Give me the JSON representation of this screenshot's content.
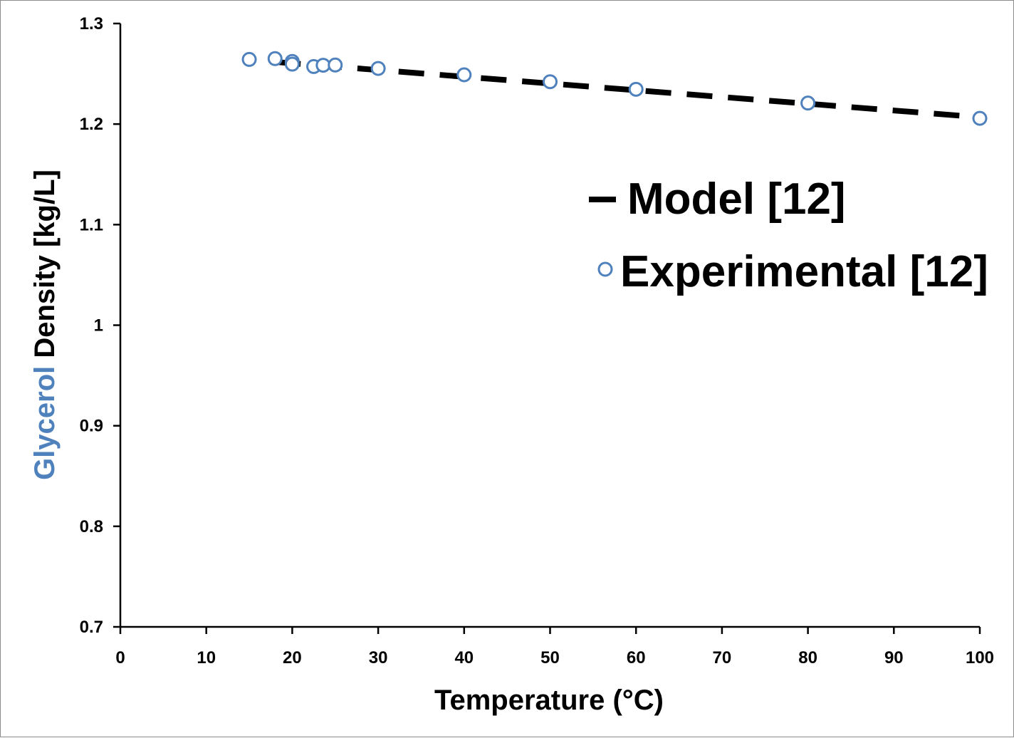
{
  "chart_data": {
    "type": "scatter",
    "xlabel": "Temperature (°C)",
    "ylabel_parts": [
      {
        "text": "Glycerol",
        "color": "#4f81bd"
      },
      {
        "text": " Density [kg/L]",
        "color": "#000000"
      }
    ],
    "xlim": [
      0,
      100
    ],
    "ylim": [
      0.7,
      1.3
    ],
    "x_ticks": [
      0,
      10,
      20,
      30,
      40,
      50,
      60,
      70,
      80,
      90,
      100
    ],
    "x_tick_labels": [
      "0",
      "10",
      "20",
      "30",
      "40",
      "50",
      "60",
      "70",
      "80",
      "90",
      "100"
    ],
    "y_ticks": [
      0.7,
      0.8,
      0.9,
      1.0,
      1.1,
      1.2,
      1.3
    ],
    "y_tick_labels": [
      "0.7",
      "0.8",
      "0.9",
      "1",
      "1.1",
      "1.2",
      "1.3"
    ],
    "grid": false,
    "legend_position": "right",
    "series": [
      {
        "name": "Model [12]",
        "type": "line",
        "style": "dashed",
        "color": "#000000",
        "x": [
          18,
          100
        ],
        "y": [
          1.2618,
          1.2068
        ]
      },
      {
        "name": "Experimental [12]",
        "type": "scatter",
        "marker": "open-circle",
        "color": "#4f81bd",
        "x": [
          15,
          18,
          20,
          20,
          22.5,
          23.6,
          25,
          30,
          40,
          50,
          60,
          80,
          100
        ],
        "y": [
          1.2643,
          1.2651,
          1.2623,
          1.2596,
          1.2572,
          1.2585,
          1.2587,
          1.2553,
          1.249,
          1.2421,
          1.2346,
          1.2209,
          1.2057
        ]
      }
    ]
  }
}
